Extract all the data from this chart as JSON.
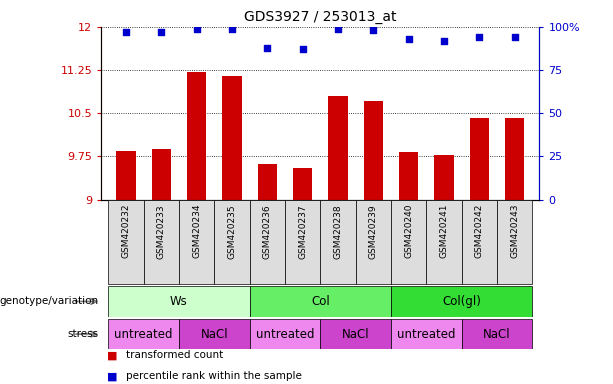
{
  "title": "GDS3927 / 253013_at",
  "samples": [
    "GSM420232",
    "GSM420233",
    "GSM420234",
    "GSM420235",
    "GSM420236",
    "GSM420237",
    "GSM420238",
    "GSM420239",
    "GSM420240",
    "GSM420241",
    "GSM420242",
    "GSM420243"
  ],
  "bar_values": [
    9.85,
    9.88,
    11.22,
    11.15,
    9.62,
    9.55,
    10.8,
    10.72,
    9.82,
    9.78,
    10.42,
    10.42
  ],
  "dot_values": [
    97,
    97,
    99,
    99,
    88,
    87,
    99,
    98,
    93,
    92,
    94,
    94
  ],
  "ylim_left": [
    9.0,
    12.0
  ],
  "ylim_right": [
    0,
    100
  ],
  "yticks_left": [
    9.0,
    9.75,
    10.5,
    11.25,
    12.0
  ],
  "ytick_labels_left": [
    "9",
    "9.75",
    "10.5",
    "11.25",
    "12"
  ],
  "yticks_right": [
    0,
    25,
    50,
    75,
    100
  ],
  "ytick_labels_right": [
    "0",
    "25",
    "50",
    "75",
    "100%"
  ],
  "bar_color": "#cc0000",
  "dot_color": "#0000cc",
  "bar_base": 9.0,
  "genotype_groups": [
    {
      "label": "Ws",
      "start": 0,
      "end": 4,
      "color": "#ccffcc"
    },
    {
      "label": "Col",
      "start": 4,
      "end": 8,
      "color": "#66ee66"
    },
    {
      "label": "Col(gl)",
      "start": 8,
      "end": 12,
      "color": "#33dd33"
    }
  ],
  "stress_groups": [
    {
      "label": "untreated",
      "start": 0,
      "end": 2,
      "color": "#ee88ee"
    },
    {
      "label": "NaCl",
      "start": 2,
      "end": 4,
      "color": "#cc44cc"
    },
    {
      "label": "untreated",
      "start": 4,
      "end": 6,
      "color": "#ee88ee"
    },
    {
      "label": "NaCl",
      "start": 6,
      "end": 8,
      "color": "#cc44cc"
    },
    {
      "label": "untreated",
      "start": 8,
      "end": 10,
      "color": "#ee88ee"
    },
    {
      "label": "NaCl",
      "start": 10,
      "end": 12,
      "color": "#cc44cc"
    }
  ],
  "legend_items": [
    {
      "label": "transformed count",
      "color": "#cc0000"
    },
    {
      "label": "percentile rank within the sample",
      "color": "#0000cc"
    }
  ],
  "genotype_label": "genotype/variation",
  "stress_label": "stress",
  "sample_bg_color": "#dddddd",
  "tick_label_color_left": "#cc0000",
  "tick_label_color_right": "#0000cc"
}
